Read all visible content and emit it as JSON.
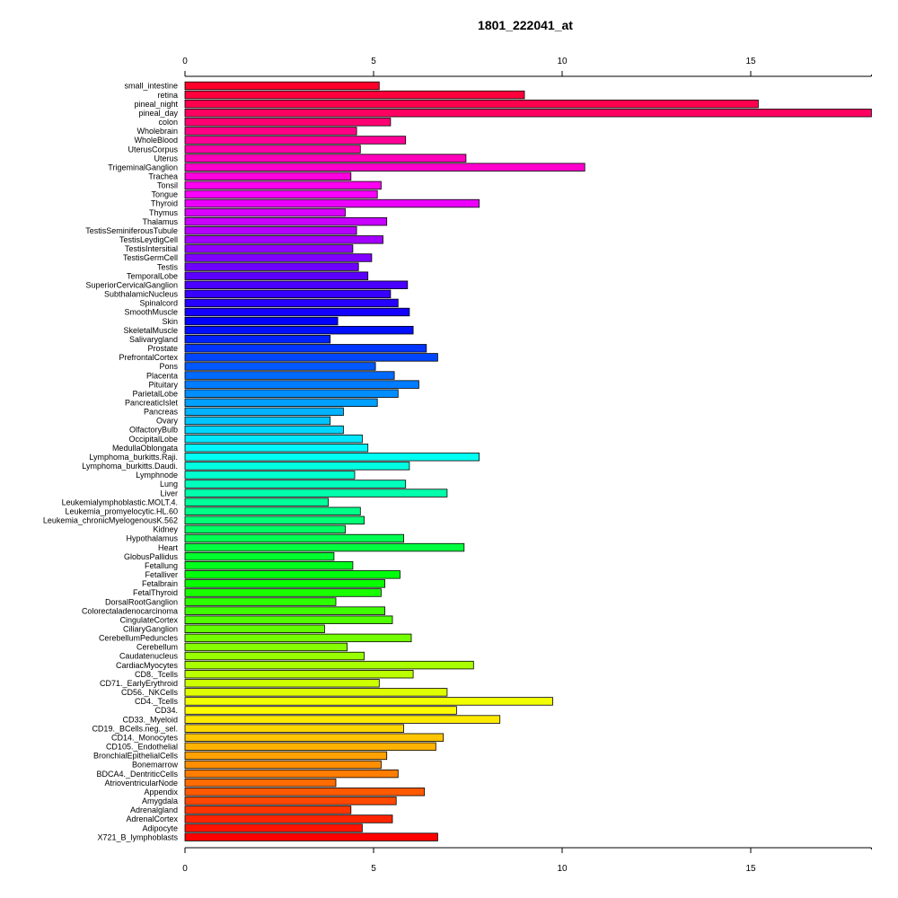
{
  "chart_data": {
    "type": "bar",
    "orientation": "horizontal",
    "title": "1801_222041_at",
    "xlabel": "",
    "ylabel": "",
    "xlim": [
      0,
      18.2
    ],
    "xticks": [
      0,
      5,
      10,
      15
    ],
    "xtick_labels": [
      "0",
      "5",
      "10",
      "15"
    ],
    "grid": false,
    "categories": [
      "small_intestine",
      "retina",
      "pineal_night",
      "pineal_day",
      "colon",
      "Wholebrain",
      "WholeBlood",
      "UterusCorpus",
      "Uterus",
      "TrigeminalGanglion",
      "Trachea",
      "Tonsil",
      "Tongue",
      "Thyroid",
      "Thymus",
      "Thalamus",
      "TestisSeminiferousTubule",
      "TestisLeydigCell",
      "TestisIntersitial",
      "TestisGermCell",
      "Testis",
      "TemporalLobe",
      "SuperiorCervicalGanglion",
      "SubthalamicNucleus",
      "Spinalcord",
      "SmoothMuscle",
      "Skin",
      "SkeletalMuscle",
      "Salivarygland",
      "Prostate",
      "PrefrontalCortex",
      "Pons",
      "Placenta",
      "Pituitary",
      "ParietalLobe",
      "PancreaticIslet",
      "Pancreas",
      "Ovary",
      "OlfactoryBulb",
      "OccipitalLobe",
      "MedullaOblongata",
      "Lymphoma_burkitts.Raji.",
      "Lymphoma_burkitts.Daudi.",
      "Lymphnode",
      "Lung",
      "Liver",
      "Leukemialymphoblastic.MOLT.4.",
      "Leukemia_promyelocytic.HL.60",
      "Leukemia_chronicMyelogenousK.562",
      "Kidney",
      "Hypothalamus",
      "Heart",
      "GlobusPallidus",
      "Fetallung",
      "Fetalliver",
      "Fetalbrain",
      "FetalThyroid",
      "DorsalRootGanglion",
      "Colorectaladenocarcinoma",
      "CingulateCortex",
      "CiliaryGanglion",
      "CerebellumPeduncles",
      "Cerebellum",
      "Caudatenucleus",
      "CardiacMyocytes",
      "CD8._Tcells",
      "CD71._EarlyErythroid",
      "CD56._NKCells",
      "CD4._Tcells",
      "CD34.",
      "CD33._Myeloid",
      "CD19._BCells.neg._sel.",
      "CD14._Monocytes",
      "CD105._Endothelial",
      "BronchialEpithelialCells",
      "Bonemarrow",
      "BDCA4._DentriticCells",
      "AtrioventricularNode",
      "Appendix",
      "Amygdala",
      "Adrenalgland",
      "AdrenalCortex",
      "Adipocyte",
      "X721_B_lymphoblasts"
    ],
    "values": [
      5.15,
      9.0,
      15.2,
      18.2,
      5.45,
      4.55,
      5.85,
      4.65,
      7.45,
      10.6,
      4.4,
      5.2,
      5.1,
      7.8,
      4.25,
      5.35,
      4.55,
      5.25,
      4.45,
      4.95,
      4.6,
      4.85,
      5.9,
      5.45,
      5.65,
      5.95,
      4.05,
      6.05,
      3.85,
      6.4,
      6.7,
      5.05,
      5.55,
      6.2,
      5.65,
      5.1,
      4.2,
      3.85,
      4.2,
      4.7,
      4.85,
      7.8,
      5.95,
      4.5,
      5.85,
      6.95,
      3.8,
      4.65,
      4.75,
      4.25,
      5.8,
      7.4,
      3.95,
      4.45,
      5.7,
      5.3,
      5.2,
      4.0,
      5.3,
      5.5,
      3.7,
      6.0,
      4.3,
      4.75,
      7.65,
      6.05,
      5.15,
      6.95,
      9.75,
      7.2,
      8.35,
      5.8,
      6.85,
      6.65,
      5.35,
      5.2,
      5.65,
      4.0,
      6.35,
      5.6,
      4.4,
      5.5,
      4.7,
      6.7
    ]
  }
}
